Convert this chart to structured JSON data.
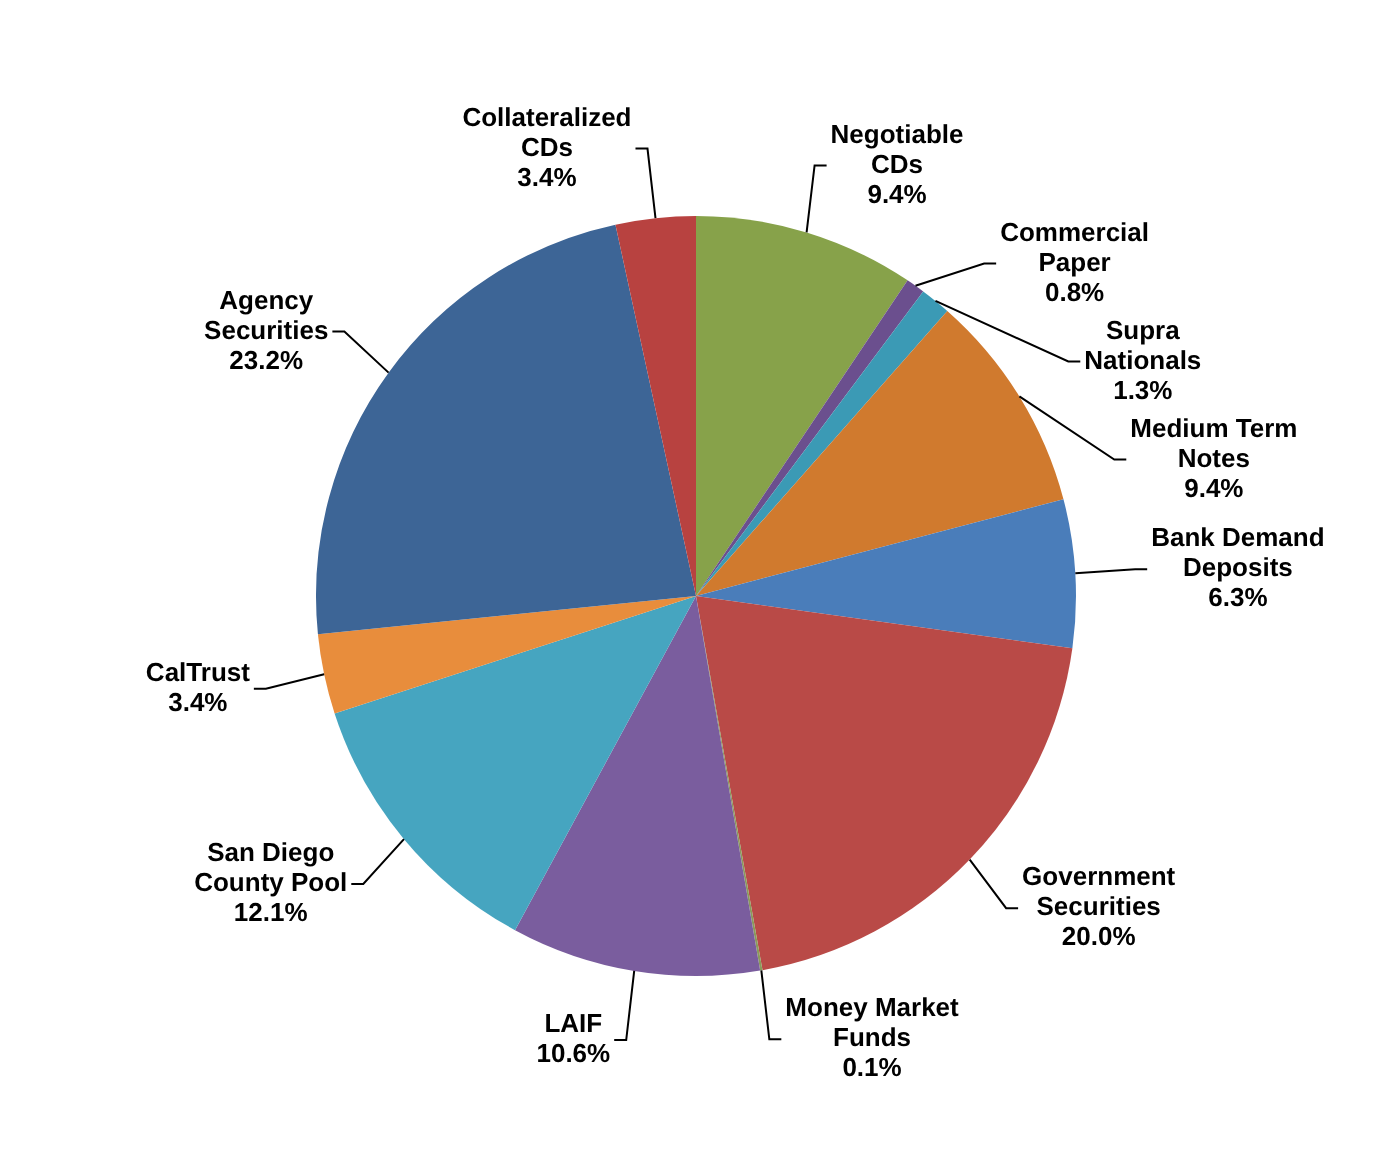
{
  "chart_data": {
    "type": "pie",
    "categories": [
      "Negotiable CDs",
      "Commercial Paper",
      "Supra Nationals",
      "Medium Term Notes",
      "Bank Demand Deposits",
      "Government Securities",
      "Money Market Funds",
      "LAIF",
      "San Diego County Pool",
      "CalTrust",
      "Agency Securities",
      "Collateralized CDs"
    ],
    "values": [
      9.4,
      0.8,
      1.3,
      9.4,
      6.3,
      20.0,
      0.1,
      10.6,
      12.1,
      3.4,
      23.2,
      3.4
    ],
    "value_labels": [
      "9.4%",
      "0.8%",
      "1.3%",
      "9.4%",
      "6.3%",
      "20.0%",
      "0.1%",
      "10.6%",
      "12.1%",
      "3.4%",
      "23.2%",
      "3.4%"
    ],
    "colors": [
      "#87a24a",
      "#6b4f8e",
      "#3b9ab5",
      "#d07a2e",
      "#4a7dba",
      "#b94a47",
      "#8a9a5b",
      "#7a5d9e",
      "#46a5c0",
      "#e88d3c",
      "#3d6596",
      "#b84240"
    ],
    "legend": false
  }
}
